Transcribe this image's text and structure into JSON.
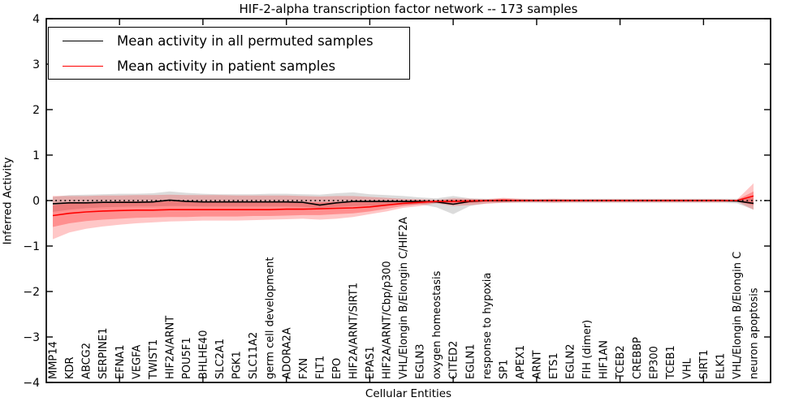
{
  "figure": {
    "title": "HIF-2-alpha transcription factor network -- 173 samples",
    "xlabel": "Cellular Entities",
    "ylabel": "Inferred Activity"
  },
  "legend": {
    "items": [
      {
        "label": "Mean activity in all permuted samples",
        "color": "#000000"
      },
      {
        "label": "Mean activity in patient samples",
        "color": "#ff0000"
      }
    ]
  },
  "chart_data": {
    "type": "line",
    "title": "HIF-2-alpha transcription factor network -- 173 samples",
    "xlabel": "Cellular Entities",
    "ylabel": "Inferred Activity",
    "ylim": [
      -4,
      4
    ],
    "ytick_values": [
      4,
      3,
      2,
      1,
      0,
      -1,
      -2,
      -3,
      -4
    ],
    "ytick_labels": [
      "4",
      "3",
      "2",
      "1",
      "0",
      "−1",
      "−2",
      "−3",
      "−4"
    ],
    "grid": false,
    "legend_position": "upper left",
    "zero_line_style": "dotted",
    "x_major_tick_indices": [
      4,
      9,
      14,
      19,
      24,
      29,
      34,
      39
    ],
    "categories": [
      "MMP14",
      "KDR",
      "ABCG2",
      "SERPINE1",
      "EFNA1",
      "VEGFA",
      "TWIST1",
      "HIF2A/ARNT",
      "POU5F1",
      "BHLHE40",
      "SLC2A1",
      "PGK1",
      "SLC11A2",
      "germ cell development",
      "ADORA2A",
      "FXN",
      "FLT1",
      "EPO",
      "HIF2A/ARNT/SIRT1",
      "EPAS1",
      "HIF2A/ARNT/Cbp/p300",
      "VHL/Elongin B/Elongin C/HIF2A",
      "EGLN3",
      "oxygen homeostasis",
      "CITED2",
      "EGLN1",
      "response to hypoxia",
      "SP1",
      "APEX1",
      "ARNT",
      "ETS1",
      "EGLN2",
      "FIH (dimer)",
      "HIF1AN",
      "TCEB2",
      "CREBBP",
      "EP300",
      "TCEB1",
      "VHL",
      "SIRT1",
      "ELK1",
      "VHL/Elongin B/Elongin C",
      "neuron apoptosis"
    ],
    "series": [
      {
        "name": "Mean activity in all permuted samples",
        "color": "#000000",
        "values": [
          -0.07,
          -0.05,
          -0.05,
          -0.04,
          -0.04,
          -0.04,
          -0.03,
          0.01,
          -0.02,
          -0.03,
          -0.03,
          -0.03,
          -0.03,
          -0.03,
          -0.03,
          -0.04,
          -0.1,
          -0.05,
          -0.02,
          -0.02,
          -0.02,
          -0.02,
          -0.02,
          -0.03,
          -0.08,
          -0.02,
          0.0,
          0.0,
          0.0,
          0.0,
          0.0,
          0.0,
          0.0,
          0.0,
          0.0,
          0.0,
          0.0,
          0.0,
          0.0,
          0.0,
          0.0,
          -0.01,
          -0.06
        ],
        "band_hi": [
          0.08,
          0.12,
          0.13,
          0.14,
          0.15,
          0.15,
          0.16,
          0.2,
          0.17,
          0.15,
          0.14,
          0.14,
          0.14,
          0.15,
          0.15,
          0.14,
          0.13,
          0.16,
          0.18,
          0.14,
          0.12,
          0.1,
          0.07,
          0.05,
          0.1,
          0.05,
          0.04,
          0.04,
          0.04,
          0.04,
          0.04,
          0.04,
          0.04,
          0.04,
          0.04,
          0.04,
          0.04,
          0.04,
          0.04,
          0.04,
          0.04,
          0.04,
          0.06
        ],
        "band_lo": [
          -0.25,
          -0.2,
          -0.17,
          -0.15,
          -0.14,
          -0.13,
          -0.13,
          -0.12,
          -0.12,
          -0.13,
          -0.13,
          -0.13,
          -0.13,
          -0.13,
          -0.13,
          -0.14,
          -0.16,
          -0.14,
          -0.12,
          -0.11,
          -0.1,
          -0.09,
          -0.08,
          -0.15,
          -0.3,
          -0.12,
          -0.06,
          -0.05,
          -0.05,
          -0.05,
          -0.05,
          -0.05,
          -0.05,
          -0.05,
          -0.05,
          -0.05,
          -0.05,
          -0.05,
          -0.05,
          -0.05,
          -0.05,
          -0.06,
          -0.2
        ],
        "band_color": "#999999",
        "band_opacity": 0.35
      },
      {
        "name": "Mean activity in patient samples",
        "color": "#ff0000",
        "values": [
          -0.33,
          -0.28,
          -0.25,
          -0.23,
          -0.22,
          -0.21,
          -0.21,
          -0.2,
          -0.2,
          -0.2,
          -0.2,
          -0.2,
          -0.2,
          -0.2,
          -0.19,
          -0.19,
          -0.18,
          -0.17,
          -0.16,
          -0.14,
          -0.1,
          -0.06,
          -0.04,
          -0.02,
          -0.02,
          -0.01,
          0.0,
          0.01,
          0.0,
          0.0,
          0.0,
          0.0,
          0.0,
          0.0,
          0.0,
          0.0,
          0.0,
          0.0,
          0.0,
          0.0,
          0.0,
          0.0,
          0.1
        ],
        "outer_band_hi": [
          0.1,
          0.1,
          0.1,
          0.11,
          0.11,
          0.12,
          0.12,
          0.13,
          0.12,
          0.12,
          0.12,
          0.11,
          0.11,
          0.11,
          0.11,
          0.1,
          0.09,
          0.1,
          0.1,
          0.08,
          0.06,
          0.04,
          0.03,
          0.02,
          0.05,
          0.04,
          0.03,
          0.06,
          0.04,
          0.03,
          0.04,
          0.03,
          0.03,
          0.03,
          0.03,
          0.03,
          0.03,
          0.03,
          0.03,
          0.03,
          0.03,
          0.02,
          0.38
        ],
        "outer_band_lo": [
          -0.85,
          -0.7,
          -0.62,
          -0.57,
          -0.53,
          -0.5,
          -0.48,
          -0.46,
          -0.45,
          -0.44,
          -0.44,
          -0.44,
          -0.43,
          -0.42,
          -0.41,
          -0.4,
          -0.42,
          -0.4,
          -0.36,
          -0.3,
          -0.24,
          -0.16,
          -0.12,
          -0.06,
          -0.12,
          -0.1,
          -0.07,
          -0.05,
          -0.04,
          -0.04,
          -0.05,
          -0.04,
          -0.04,
          -0.04,
          -0.04,
          -0.04,
          -0.04,
          -0.04,
          -0.04,
          -0.04,
          -0.04,
          -0.02,
          -0.2
        ],
        "inner_band_hi": [
          -0.1,
          -0.06,
          -0.04,
          -0.03,
          -0.02,
          -0.02,
          -0.02,
          -0.01,
          -0.02,
          -0.02,
          -0.02,
          -0.02,
          -0.02,
          -0.02,
          -0.02,
          -0.03,
          -0.04,
          -0.03,
          -0.03,
          -0.02,
          -0.02,
          -0.01,
          0.0,
          0.0,
          0.02,
          0.02,
          0.01,
          0.03,
          0.02,
          0.015,
          0.02,
          0.015,
          0.015,
          0.015,
          0.015,
          0.015,
          0.015,
          0.015,
          0.015,
          0.015,
          0.015,
          0.01,
          0.2
        ],
        "inner_band_lo": [
          -0.58,
          -0.5,
          -0.45,
          -0.42,
          -0.4,
          -0.38,
          -0.37,
          -0.36,
          -0.36,
          -0.35,
          -0.35,
          -0.35,
          -0.34,
          -0.34,
          -0.33,
          -0.32,
          -0.32,
          -0.3,
          -0.28,
          -0.24,
          -0.18,
          -0.12,
          -0.08,
          -0.04,
          -0.07,
          -0.05,
          -0.03,
          -0.03,
          -0.02,
          -0.015,
          -0.02,
          -0.015,
          -0.015,
          -0.015,
          -0.015,
          -0.015,
          -0.015,
          -0.015,
          -0.015,
          -0.015,
          -0.015,
          -0.01,
          -0.1
        ],
        "outer_band_color": "#ff0000",
        "outer_band_opacity": 0.22,
        "inner_band_color": "#ff0000",
        "inner_band_opacity": 0.28
      }
    ]
  }
}
